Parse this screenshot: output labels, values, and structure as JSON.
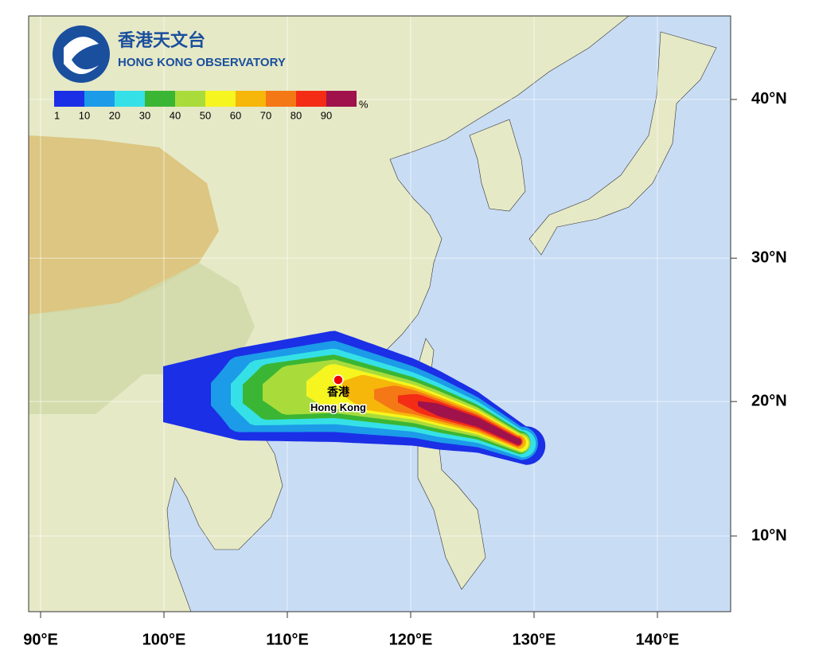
{
  "header": {
    "title_zh": "香港天文台",
    "title_en": "HONG KONG OBSERVATORY"
  },
  "legend": {
    "labels": [
      "1",
      "10",
      "20",
      "30",
      "40",
      "50",
      "60",
      "70",
      "80",
      "90"
    ],
    "unit": "%",
    "colors": [
      "#1b2fe6",
      "#1c9be8",
      "#35e1e6",
      "#3bb634",
      "#a9dc3b",
      "#f6f51f",
      "#f6b70a",
      "#f57816",
      "#f42c16",
      "#a0124c"
    ]
  },
  "axes": {
    "x_ticks": [
      {
        "value": 90,
        "label": "90°E"
      },
      {
        "value": 100,
        "label": "100°E"
      },
      {
        "value": 110,
        "label": "110°E"
      },
      {
        "value": 120,
        "label": "120°E"
      },
      {
        "value": 130,
        "label": "130°E"
      },
      {
        "value": 140,
        "label": "140°E"
      }
    ],
    "y_ticks": [
      {
        "value": 40,
        "label": "40°N"
      },
      {
        "value": 30,
        "label": "30°N"
      },
      {
        "value": 20,
        "label": "20°N"
      },
      {
        "value": 10,
        "label": "10°N"
      }
    ]
  },
  "place": {
    "name_zh": "香港",
    "name_en": "Hong Kong"
  }
}
